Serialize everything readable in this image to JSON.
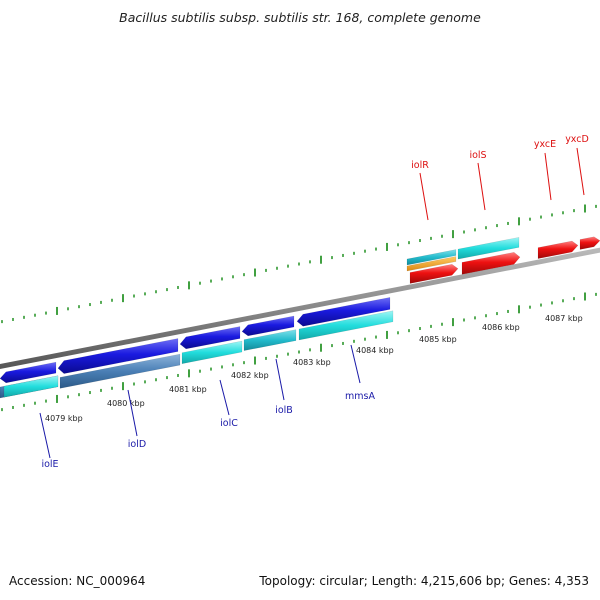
{
  "title": "Bacillus subtilis subsp. subtilis str. 168, complete genome",
  "footer": {
    "accession": "Accession: NC_000964",
    "summary": "Topology: circular; Length: 4,215,606 bp; Genes: 4,353"
  },
  "scale_labels": [
    "4079 kbp",
    "4080 kbp",
    "4081 kbp",
    "4082 kbp",
    "4083 kbp",
    "4084 kbp",
    "4085 kbp",
    "4086 kbp",
    "4087 kbp"
  ],
  "genes": [
    {
      "name": "iolE",
      "color": "#1a1aa8"
    },
    {
      "name": "iolD",
      "color": "#1a1aa8"
    },
    {
      "name": "iolC",
      "color": "#1a1aa8"
    },
    {
      "name": "iolB",
      "color": "#1a1aa8"
    },
    {
      "name": "mmsA",
      "color": "#1a1aa8"
    },
    {
      "name": "iolR",
      "color": "#dd1111"
    },
    {
      "name": "iolS",
      "color": "#dd1111"
    },
    {
      "name": "yxcE",
      "color": "#dd1111"
    },
    {
      "name": "yxcD",
      "color": "#dd1111"
    }
  ],
  "colors": {
    "reverse_gene": "#1a1add",
    "forward_gene": "#ee1111",
    "cds_cyan": "#22dddd",
    "cds_teal": "#22bbcc",
    "cds_steel": "#4a7fb5",
    "orange_feature": "#ee9922",
    "backbone": "#888888",
    "tick": "#118811"
  }
}
